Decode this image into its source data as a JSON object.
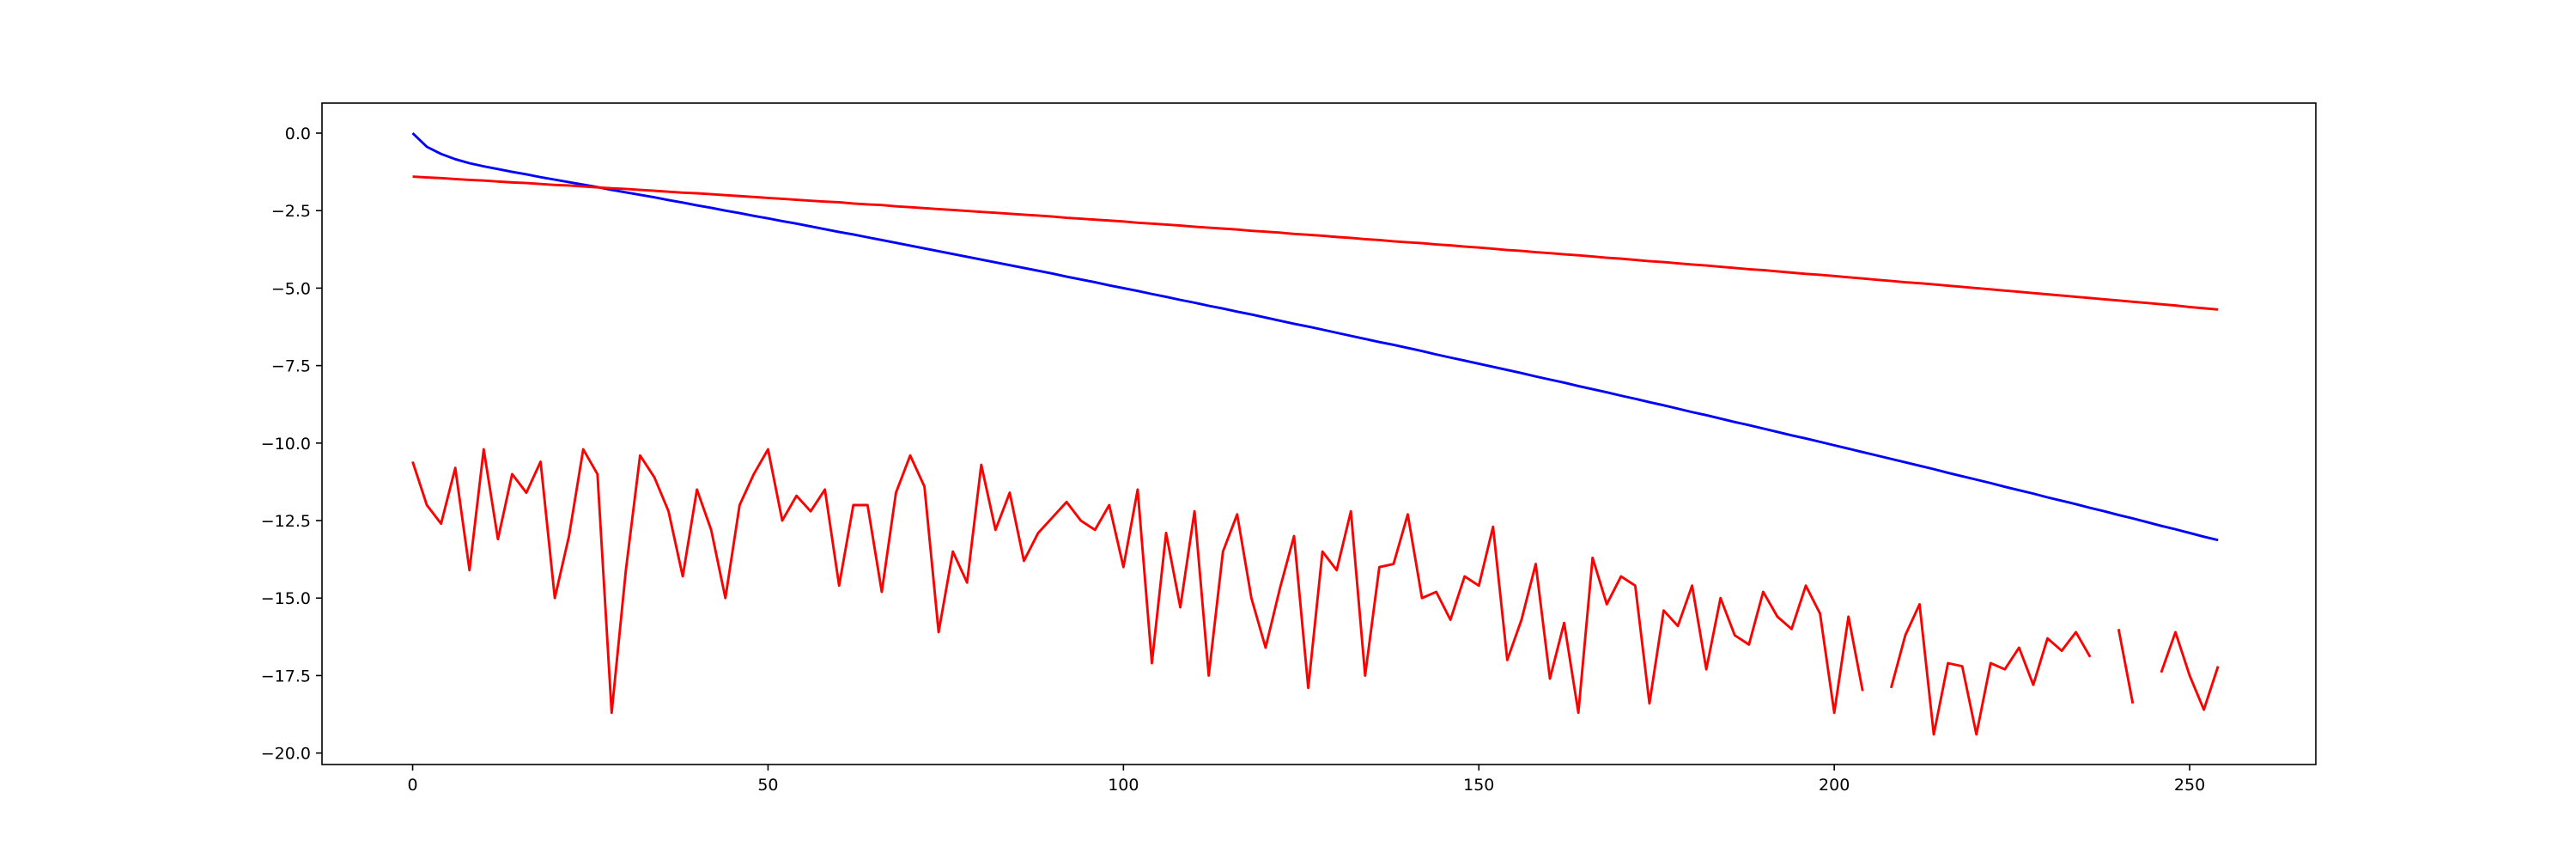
{
  "chart_data": {
    "type": "line",
    "x": [
      0,
      2,
      4,
      6,
      8,
      10,
      12,
      14,
      16,
      18,
      20,
      22,
      24,
      26,
      28,
      30,
      32,
      34,
      36,
      38,
      40,
      42,
      44,
      46,
      48,
      50,
      52,
      54,
      56,
      58,
      60,
      62,
      64,
      66,
      68,
      70,
      72,
      74,
      76,
      78,
      80,
      82,
      84,
      86,
      88,
      90,
      92,
      94,
      96,
      98,
      100,
      102,
      104,
      106,
      108,
      110,
      112,
      114,
      116,
      118,
      120,
      122,
      124,
      126,
      128,
      130,
      132,
      134,
      136,
      138,
      140,
      142,
      144,
      146,
      148,
      150,
      152,
      154,
      156,
      158,
      160,
      162,
      164,
      166,
      168,
      170,
      172,
      174,
      176,
      178,
      180,
      182,
      184,
      186,
      188,
      190,
      192,
      194,
      196,
      198,
      200,
      202,
      204,
      206,
      208,
      210,
      212,
      214,
      216,
      218,
      220,
      222,
      224,
      226,
      228,
      230,
      232,
      234,
      236,
      238,
      240,
      242,
      244,
      246,
      248,
      250,
      252,
      254
    ],
    "series": [
      {
        "color": "#0000ff",
        "values": [
          0,
          -0.44,
          -0.67,
          -0.84,
          -0.97,
          -1.07,
          -1.16,
          -1.25,
          -1.33,
          -1.42,
          -1.5,
          -1.58,
          -1.66,
          -1.74,
          -1.83,
          -1.91,
          -1.99,
          -2.07,
          -2.16,
          -2.24,
          -2.33,
          -2.41,
          -2.5,
          -2.58,
          -2.67,
          -2.75,
          -2.84,
          -2.92,
          -3.01,
          -3.1,
          -3.19,
          -3.27,
          -3.36,
          -3.45,
          -3.54,
          -3.63,
          -3.72,
          -3.81,
          -3.9,
          -3.99,
          -4.08,
          -4.17,
          -4.26,
          -4.35,
          -4.44,
          -4.53,
          -4.63,
          -4.72,
          -4.81,
          -4.91,
          -5.0,
          -5.09,
          -5.19,
          -5.28,
          -5.38,
          -5.47,
          -5.57,
          -5.66,
          -5.76,
          -5.85,
          -5.95,
          -6.05,
          -6.15,
          -6.24,
          -6.34,
          -6.44,
          -6.54,
          -6.64,
          -6.74,
          -6.83,
          -6.93,
          -7.03,
          -7.14,
          -7.24,
          -7.34,
          -7.44,
          -7.54,
          -7.64,
          -7.74,
          -7.85,
          -7.95,
          -8.05,
          -8.16,
          -8.26,
          -8.36,
          -8.47,
          -8.57,
          -8.68,
          -8.78,
          -8.89,
          -9.0,
          -9.1,
          -9.21,
          -9.32,
          -9.42,
          -9.53,
          -9.64,
          -9.75,
          -9.85,
          -9.96,
          -10.07,
          -10.18,
          -10.29,
          -10.4,
          -10.51,
          -10.62,
          -10.73,
          -10.84,
          -10.96,
          -11.07,
          -11.18,
          -11.29,
          -11.41,
          -11.52,
          -11.63,
          -11.75,
          -11.86,
          -11.97,
          -12.09,
          -12.2,
          -12.32,
          -12.43,
          -12.55,
          -12.67,
          -12.78,
          -12.9,
          -13.02,
          -13.13
        ]
      },
      {
        "color": "#ff0000",
        "values": [
          -1.4,
          -1.43,
          -1.45,
          -1.48,
          -1.51,
          -1.53,
          -1.56,
          -1.59,
          -1.61,
          -1.64,
          -1.67,
          -1.69,
          -1.72,
          -1.75,
          -1.78,
          -1.8,
          -1.83,
          -1.86,
          -1.89,
          -1.92,
          -1.94,
          -1.97,
          -2.0,
          -2.03,
          -2.06,
          -2.09,
          -2.12,
          -2.15,
          -2.18,
          -2.21,
          -2.23,
          -2.27,
          -2.3,
          -2.32,
          -2.36,
          -2.39,
          -2.42,
          -2.45,
          -2.48,
          -2.51,
          -2.54,
          -2.57,
          -2.6,
          -2.63,
          -2.66,
          -2.69,
          -2.73,
          -2.76,
          -2.79,
          -2.82,
          -2.85,
          -2.89,
          -2.92,
          -2.95,
          -2.98,
          -3.02,
          -3.05,
          -3.08,
          -3.11,
          -3.15,
          -3.18,
          -3.21,
          -3.25,
          -3.28,
          -3.31,
          -3.35,
          -3.38,
          -3.42,
          -3.45,
          -3.49,
          -3.52,
          -3.55,
          -3.59,
          -3.62,
          -3.66,
          -3.69,
          -3.73,
          -3.77,
          -3.8,
          -3.84,
          -3.87,
          -3.91,
          -3.94,
          -3.98,
          -4.02,
          -4.05,
          -4.09,
          -4.13,
          -4.16,
          -4.2,
          -4.24,
          -4.27,
          -4.31,
          -4.35,
          -4.39,
          -4.42,
          -4.46,
          -4.5,
          -4.54,
          -4.57,
          -4.61,
          -4.65,
          -4.69,
          -4.73,
          -4.77,
          -4.81,
          -4.84,
          -4.88,
          -4.92,
          -4.96,
          -5.0,
          -5.04,
          -5.08,
          -5.12,
          -5.16,
          -5.2,
          -5.24,
          -5.28,
          -5.32,
          -5.36,
          -5.4,
          -5.44,
          -5.48,
          -5.52,
          -5.56,
          -5.61,
          -5.65,
          -5.69
        ]
      },
      {
        "color": "#ff0000",
        "values": [
          -10.6,
          -12.0,
          -12.6,
          -10.8,
          -14.1,
          -10.2,
          -13.1,
          -11.0,
          -11.6,
          -10.6,
          -15.0,
          -13.0,
          -10.2,
          -11.0,
          -18.7,
          -14.1,
          -10.4,
          -11.1,
          -12.2,
          -14.3,
          -11.5,
          -12.8,
          -15.0,
          -12.0,
          -11.0,
          -10.2,
          -12.5,
          -11.7,
          -12.2,
          -11.5,
          -14.6,
          -12.0,
          -12.0,
          -14.8,
          -11.6,
          -10.4,
          -11.4,
          -16.1,
          -13.5,
          -14.5,
          -10.7,
          -12.8,
          -11.6,
          -13.8,
          -12.9,
          -12.4,
          -11.9,
          -12.5,
          -12.8,
          -12.0,
          -14.0,
          -11.5,
          -17.1,
          -12.9,
          -15.3,
          -12.2,
          -17.5,
          -13.5,
          -12.3,
          -15.0,
          -16.6,
          -14.7,
          -13.0,
          -17.9,
          -13.5,
          -14.1,
          -12.2,
          -17.5,
          -14.0,
          -13.9,
          -12.3,
          -15.0,
          -14.8,
          -15.7,
          -14.3,
          -14.6,
          -12.7,
          -17.0,
          -15.7,
          -13.9,
          -17.6,
          -15.8,
          -18.7,
          -13.7,
          -15.2,
          -14.3,
          -14.6,
          -18.4,
          -15.4,
          -15.9,
          -14.6,
          -17.3,
          -15.0,
          -16.2,
          -16.5,
          -14.8,
          -15.6,
          -16.0,
          -14.6,
          -15.5,
          -18.7,
          -15.6,
          -18.0,
          null,
          -17.9,
          -16.2,
          -15.2,
          -19.4,
          -17.1,
          -17.2,
          -19.4,
          -17.1,
          -17.3,
          -16.6,
          -17.8,
          -16.3,
          -16.7,
          -16.1,
          -16.9,
          null,
          -16.0,
          -18.4,
          null,
          -17.4,
          -16.1,
          -17.5,
          -18.6,
          -17.2
        ]
      }
    ],
    "xlim": [
      -12.75,
      267.75
    ],
    "ylim": [
      -20.37,
      0.97
    ],
    "xticks": [
      0,
      50,
      100,
      150,
      200,
      250
    ],
    "yticks": [
      {
        "value": 0,
        "label": "0.0"
      },
      {
        "value": -2.5,
        "label": "−2.5"
      },
      {
        "value": -5,
        "label": "−5.0"
      },
      {
        "value": -7.5,
        "label": "−7.5"
      },
      {
        "value": -10,
        "label": "−10.0"
      },
      {
        "value": -12.5,
        "label": "−12.5"
      },
      {
        "value": -15,
        "label": "−15.0"
      },
      {
        "value": -17.5,
        "label": "−17.5"
      },
      {
        "value": -20,
        "label": "−20.0"
      }
    ]
  }
}
